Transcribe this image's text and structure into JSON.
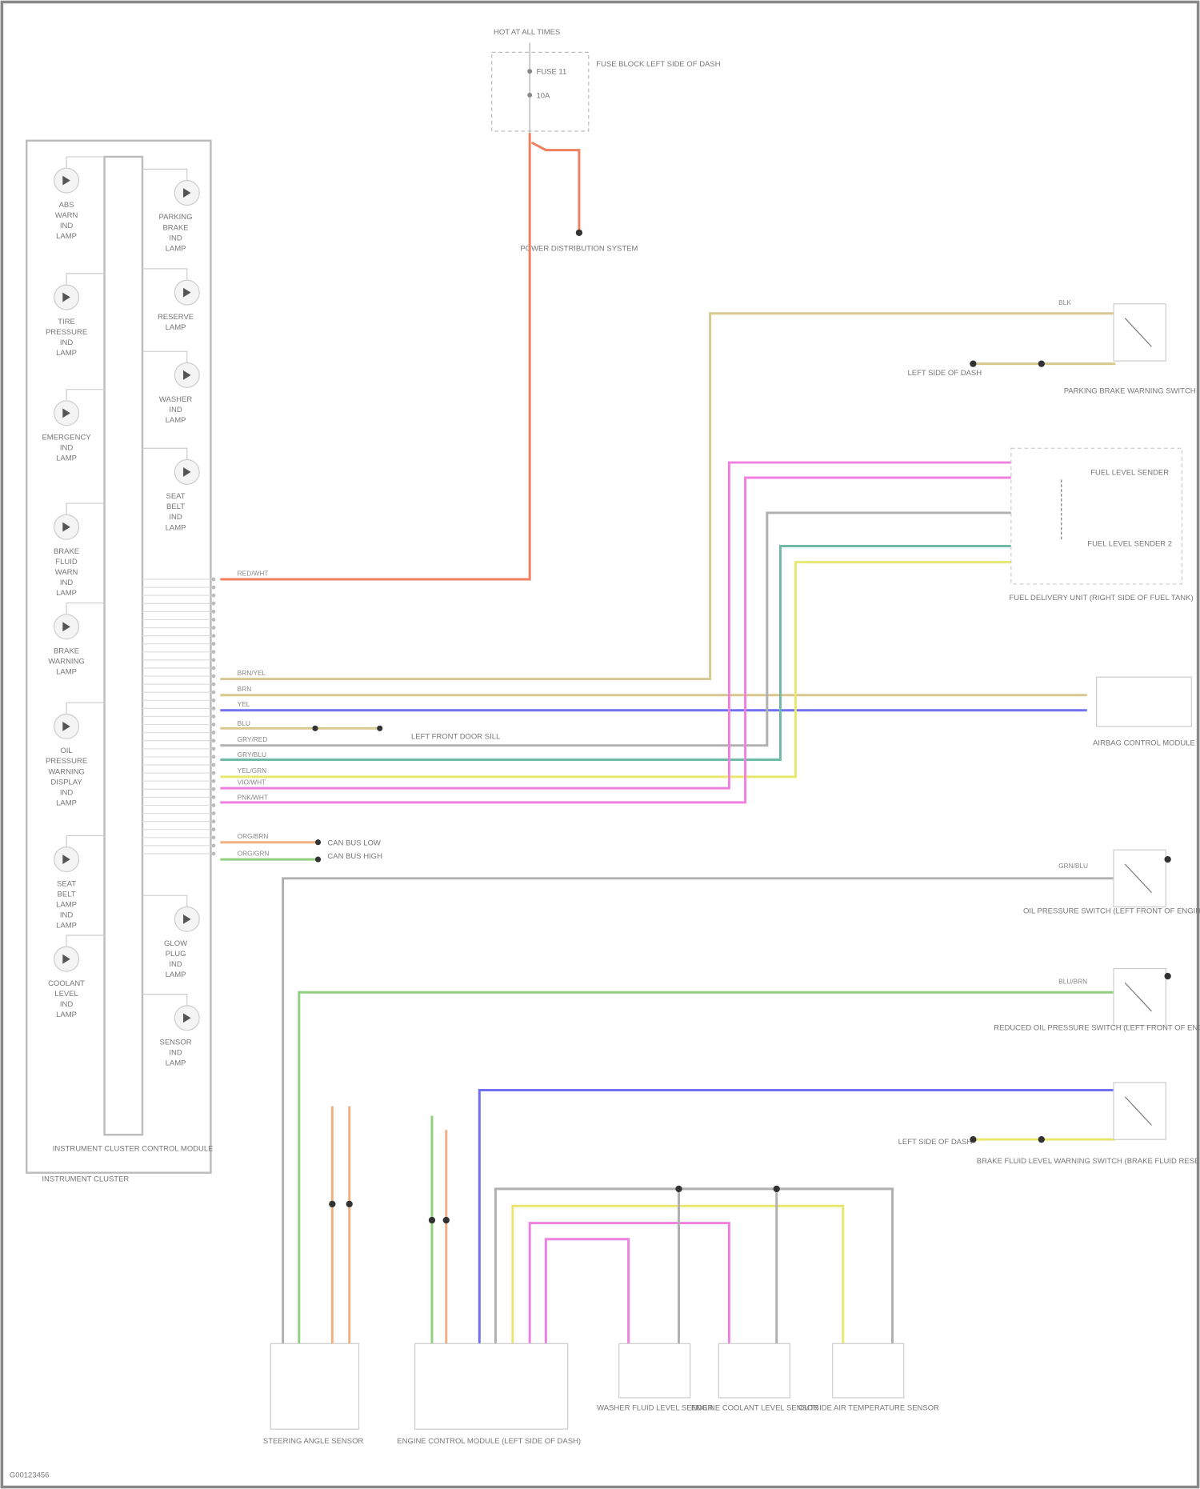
{
  "power": {
    "top_label": "HOT AT ALL TIMES",
    "fuse_a": "FUSE 11",
    "fuse_b": "10A",
    "fuse_block_label": "FUSE BLOCK LEFT SIDE OF DASH",
    "power_dist_label": "POWER DISTRIBUTION SYSTEM"
  },
  "cluster": {
    "module_label": "INSTRUMENT CLUSTER CONTROL MODULE",
    "cluster_label": "INSTRUMENT CLUSTER",
    "left_lamps": [
      "ABS WARN IND LAMP",
      "TIRE PRESSURE IND LAMP",
      "EMERGENCY IND LAMP",
      "BRAKE FLUID WARN IND LAMP",
      "BRAKE WARNING LAMP",
      "OIL PRESSURE WARNING DISPLAY IND LAMP",
      "SEAT BELT LAMP IND LAMP",
      "COOLANT LEVEL IND LAMP"
    ],
    "right_lamps": [
      "PARKING BRAKE IND LAMP",
      "RESERVE LAMP",
      "WASHER IND LAMP",
      "SEAT BELT IND LAMP",
      "GLOW PLUG IND LAMP",
      "SENSOR IND LAMP"
    ]
  },
  "components": {
    "parking_brake_switch": "PARKING BRAKE WARNING SWITCH",
    "ground_1": "LEFT SIDE OF DASH",
    "fuel_sender_1": "FUEL LEVEL SENDER",
    "fuel_sender_2": "FUEL LEVEL SENDER 2",
    "fuel_unit": "FUEL DELIVERY UNIT (RIGHT SIDE OF FUEL TANK)",
    "airbag_module": "AIRBAG CONTROL MODULE",
    "ground_2": "LEFT FRONT DOOR SILL",
    "can_low": "CAN BUS LOW",
    "can_high": "CAN BUS HIGH",
    "oil_switch": "OIL PRESSURE SWITCH (LEFT FRONT OF ENGINE BLOCK)",
    "reduced_oil_switch": "REDUCED OIL PRESSURE SWITCH (LEFT FRONT OF ENGINE BLOCK)",
    "brake_fluid_switch": "BRAKE FLUID LEVEL WARNING SWITCH (BRAKE FLUID RESERVOIR)",
    "ground_3": "LEFT SIDE OF DASH",
    "steering_sensor": "STEERING ANGLE SENSOR",
    "engine_module": "ENGINE CONTROL MODULE (LEFT SIDE OF DASH)",
    "washer_sensor": "WASHER FLUID LEVEL SENDER",
    "coolant_sensor": "ENGINE COOLANT LEVEL SENSOR",
    "outside_temp": "OUTSIDE AIR TEMPERATURE SENSOR"
  },
  "wire_colors": {
    "red": "#f08060",
    "orange": "#f0b080",
    "tan": "#d8c890",
    "yellow": "#e8e870",
    "blue": "#7070f0",
    "gray": "#b0b0b0",
    "teal": "#70b8a8",
    "pink": "#f080e0",
    "green": "#90d080"
  },
  "wire_labels": [
    "RED/WHT",
    "BRN/YEL",
    "BRN",
    "YEL",
    "BLU",
    "GRY/RED",
    "GRY/BLU",
    "YEL/GRN",
    "PNK/WHT",
    "VIO/WHT",
    "ORG/BRN",
    "ORG/GRN",
    "BLK",
    "GRN/BLU",
    "BLU/BRN"
  ],
  "footer": {
    "code": "G00123456"
  }
}
